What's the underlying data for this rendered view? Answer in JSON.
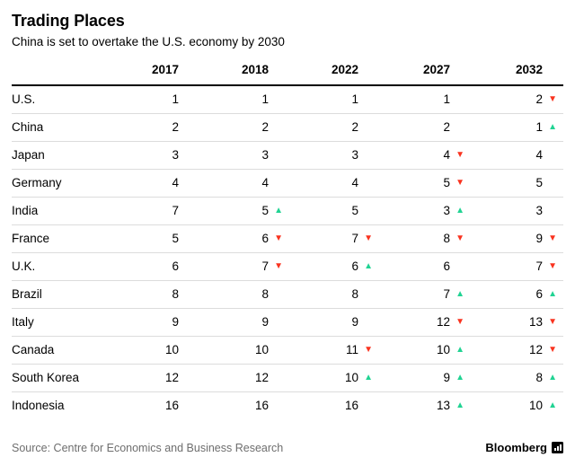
{
  "chart_data": {
    "type": "table",
    "title": "Trading Places",
    "subtitle": "China is set to overtake the U.S. economy by 2030",
    "source": "Source: Centre for Economics and Business Research",
    "brand": "Bloomberg",
    "year_columns": [
      "2017",
      "2018",
      "2022",
      "2027",
      "2032"
    ],
    "rows": [
      {
        "country": "U.S.",
        "cells": [
          {
            "value": "1",
            "change": "none"
          },
          {
            "value": "1",
            "change": "none"
          },
          {
            "value": "1",
            "change": "none"
          },
          {
            "value": "1",
            "change": "none"
          },
          {
            "value": "2",
            "change": "down"
          }
        ]
      },
      {
        "country": "China",
        "cells": [
          {
            "value": "2",
            "change": "none"
          },
          {
            "value": "2",
            "change": "none"
          },
          {
            "value": "2",
            "change": "none"
          },
          {
            "value": "2",
            "change": "none"
          },
          {
            "value": "1",
            "change": "up"
          }
        ]
      },
      {
        "country": "Japan",
        "cells": [
          {
            "value": "3",
            "change": "none"
          },
          {
            "value": "3",
            "change": "none"
          },
          {
            "value": "3",
            "change": "none"
          },
          {
            "value": "4",
            "change": "down"
          },
          {
            "value": "4",
            "change": "none"
          }
        ]
      },
      {
        "country": "Germany",
        "cells": [
          {
            "value": "4",
            "change": "none"
          },
          {
            "value": "4",
            "change": "none"
          },
          {
            "value": "4",
            "change": "none"
          },
          {
            "value": "5",
            "change": "down"
          },
          {
            "value": "5",
            "change": "none"
          }
        ]
      },
      {
        "country": "India",
        "cells": [
          {
            "value": "7",
            "change": "none"
          },
          {
            "value": "5",
            "change": "up"
          },
          {
            "value": "5",
            "change": "none"
          },
          {
            "value": "3",
            "change": "up"
          },
          {
            "value": "3",
            "change": "none"
          }
        ]
      },
      {
        "country": "France",
        "cells": [
          {
            "value": "5",
            "change": "none"
          },
          {
            "value": "6",
            "change": "down"
          },
          {
            "value": "7",
            "change": "down"
          },
          {
            "value": "8",
            "change": "down"
          },
          {
            "value": "9",
            "change": "down"
          }
        ]
      },
      {
        "country": "U.K.",
        "cells": [
          {
            "value": "6",
            "change": "none"
          },
          {
            "value": "7",
            "change": "down"
          },
          {
            "value": "6",
            "change": "up"
          },
          {
            "value": "6",
            "change": "none"
          },
          {
            "value": "7",
            "change": "down"
          }
        ]
      },
      {
        "country": "Brazil",
        "cells": [
          {
            "value": "8",
            "change": "none"
          },
          {
            "value": "8",
            "change": "none"
          },
          {
            "value": "8",
            "change": "none"
          },
          {
            "value": "7",
            "change": "up"
          },
          {
            "value": "6",
            "change": "up"
          }
        ]
      },
      {
        "country": "Italy",
        "cells": [
          {
            "value": "9",
            "change": "none"
          },
          {
            "value": "9",
            "change": "none"
          },
          {
            "value": "9",
            "change": "none"
          },
          {
            "value": "12",
            "change": "down"
          },
          {
            "value": "13",
            "change": "down"
          }
        ]
      },
      {
        "country": "Canada",
        "cells": [
          {
            "value": "10",
            "change": "none"
          },
          {
            "value": "10",
            "change": "none"
          },
          {
            "value": "11",
            "change": "down"
          },
          {
            "value": "10",
            "change": "up"
          },
          {
            "value": "12",
            "change": "down"
          }
        ]
      },
      {
        "country": "South Korea",
        "cells": [
          {
            "value": "12",
            "change": "none"
          },
          {
            "value": "12",
            "change": "none"
          },
          {
            "value": "10",
            "change": "up"
          },
          {
            "value": "9",
            "change": "up"
          },
          {
            "value": "8",
            "change": "up"
          }
        ]
      },
      {
        "country": "Indonesia",
        "cells": [
          {
            "value": "16",
            "change": "none"
          },
          {
            "value": "16",
            "change": "none"
          },
          {
            "value": "16",
            "change": "none"
          },
          {
            "value": "13",
            "change": "up"
          },
          {
            "value": "10",
            "change": "up"
          }
        ]
      }
    ]
  },
  "colors": {
    "up": "#21d393",
    "down": "#f9331f",
    "header_rule": "#000000",
    "row_separator": "#dcdcdc",
    "source_text": "#6e6e6e",
    "text": "#000000",
    "background": "#ffffff"
  },
  "icons": {
    "up_arrow": "▲",
    "down_arrow": "▼",
    "brand_mark": "bloomberg-terminal-icon"
  }
}
